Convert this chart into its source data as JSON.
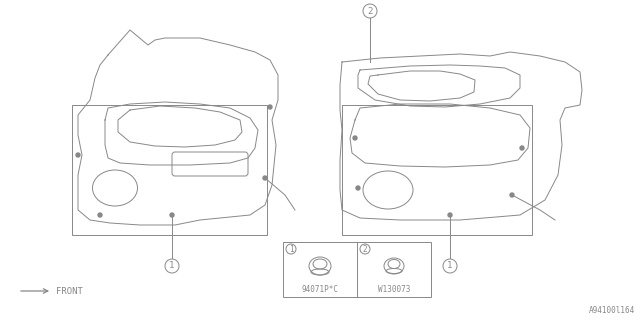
{
  "bg_color": "#ffffff",
  "line_color": "#888888",
  "part1_label": "94071P*C",
  "part2_label": "W130073",
  "front_label": "FRONT",
  "callout1": "1",
  "callout2": "2",
  "diagram_id": "A94100l164"
}
